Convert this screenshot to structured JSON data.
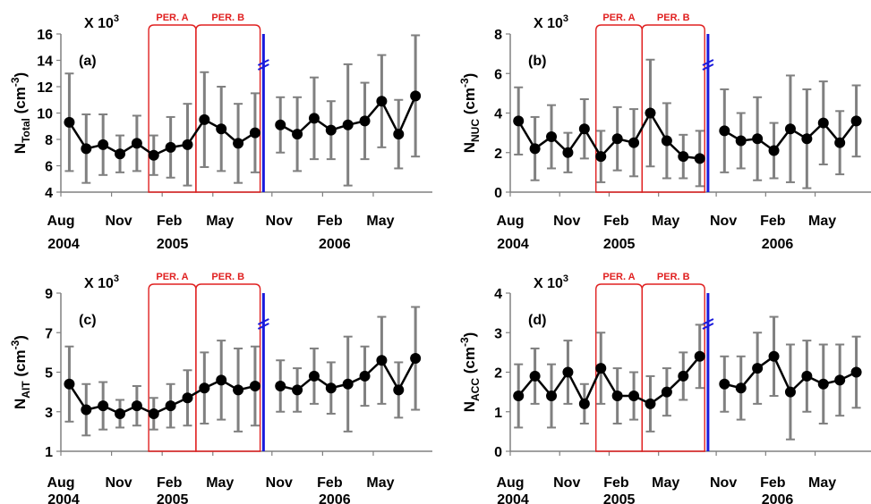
{
  "common": {
    "scale_label": "X 10",
    "scale_exp": "3",
    "period_a": "PER. A",
    "period_b": "PER. B",
    "month_ticks": [
      "Aug",
      "Nov",
      "Feb",
      "May",
      "Nov",
      "Feb",
      "May"
    ],
    "year_labels": [
      "2004",
      "2005",
      "2006"
    ],
    "colors": {
      "line": "#000000",
      "error": "#808080",
      "period": "#e02020",
      "break": "#1a1adc",
      "axis": "#808080"
    }
  },
  "chart_data": [
    {
      "panel": "(a)",
      "type": "line",
      "ylabel_main": "N",
      "ylabel_sub": "Total",
      "ylabel_unit": " (cm",
      "ylabel_exp": "-3",
      "ylabel_close": ")",
      "ylim": [
        4,
        16
      ],
      "yticks": [
        "4",
        "6",
        "8",
        "10",
        "12",
        "14",
        "16"
      ],
      "segment1": {
        "values": [
          9.3,
          7.3,
          7.6,
          6.9,
          7.7,
          6.8,
          7.4,
          7.6,
          9.5,
          8.8,
          7.7,
          8.5
        ],
        "err": [
          3.7,
          2.6,
          2.3,
          1.4,
          2.1,
          1.5,
          2.3,
          3.1,
          3.6,
          3.2,
          3.0,
          3.0
        ]
      },
      "segment2": {
        "values": [
          9.1,
          8.4,
          9.6,
          8.7,
          9.1,
          9.4,
          10.9,
          8.4,
          11.3
        ],
        "err": [
          2.1,
          2.8,
          3.1,
          2.2,
          4.6,
          2.9,
          3.5,
          2.6,
          4.6
        ]
      }
    },
    {
      "panel": "(b)",
      "type": "line",
      "ylabel_main": "N",
      "ylabel_sub": "NUC",
      "ylabel_unit": " (cm",
      "ylabel_exp": "-3",
      "ylabel_close": ")",
      "ylim": [
        0,
        8
      ],
      "yticks": [
        "0",
        "2",
        "4",
        "6",
        "8"
      ],
      "segment1": {
        "values": [
          3.6,
          2.2,
          2.8,
          2.0,
          3.2,
          1.8,
          2.7,
          2.5,
          4.0,
          2.6,
          1.8,
          1.7
        ],
        "err": [
          1.7,
          1.6,
          1.6,
          1.0,
          1.5,
          1.3,
          1.6,
          1.7,
          2.7,
          1.9,
          1.1,
          1.4
        ]
      },
      "segment2": {
        "values": [
          3.1,
          2.6,
          2.7,
          2.1,
          3.2,
          2.7,
          3.5,
          2.5,
          3.6
        ],
        "err": [
          2.1,
          1.4,
          2.1,
          1.4,
          2.7,
          2.5,
          2.1,
          1.6,
          1.8
        ]
      }
    },
    {
      "panel": "(c)",
      "type": "line",
      "ylabel_main": "N",
      "ylabel_sub": "AIT",
      "ylabel_unit": " (cm",
      "ylabel_exp": "-3",
      "ylabel_close": ")",
      "ylim": [
        1,
        9
      ],
      "yticks": [
        "1",
        "3",
        "5",
        "7",
        "9"
      ],
      "segment1": {
        "values": [
          4.4,
          3.1,
          3.3,
          2.9,
          3.3,
          2.9,
          3.3,
          3.7,
          4.2,
          4.6,
          4.1,
          4.3
        ],
        "err": [
          1.9,
          1.3,
          1.2,
          0.7,
          1.0,
          0.8,
          1.1,
          1.4,
          1.8,
          2.0,
          2.1,
          2.0
        ]
      },
      "segment2": {
        "values": [
          4.3,
          4.1,
          4.8,
          4.2,
          4.4,
          4.8,
          5.6,
          4.1,
          5.7
        ],
        "err": [
          1.3,
          1.1,
          1.4,
          1.3,
          2.4,
          1.5,
          2.2,
          1.4,
          2.6
        ]
      }
    },
    {
      "panel": "(d)",
      "type": "line",
      "ylabel_main": "N",
      "ylabel_sub": "ACC",
      "ylabel_unit": " (cm",
      "ylabel_exp": "-3",
      "ylabel_close": ")",
      "ylim": [
        0,
        4
      ],
      "yticks": [
        "0",
        "1",
        "2",
        "3",
        "4"
      ],
      "segment1": {
        "values": [
          1.4,
          1.9,
          1.4,
          2.0,
          1.2,
          2.1,
          1.4,
          1.4,
          1.2,
          1.5,
          1.9,
          2.4
        ],
        "err": [
          0.8,
          0.7,
          0.8,
          0.8,
          0.5,
          0.9,
          0.7,
          0.6,
          0.7,
          0.6,
          0.6,
          0.8
        ]
      },
      "segment2": {
        "values": [
          1.7,
          1.6,
          2.1,
          2.4,
          1.5,
          1.9,
          1.7,
          1.8,
          2.0
        ],
        "err": [
          0.7,
          0.8,
          0.9,
          1.0,
          1.2,
          0.9,
          1.0,
          0.9,
          0.9
        ]
      }
    }
  ]
}
